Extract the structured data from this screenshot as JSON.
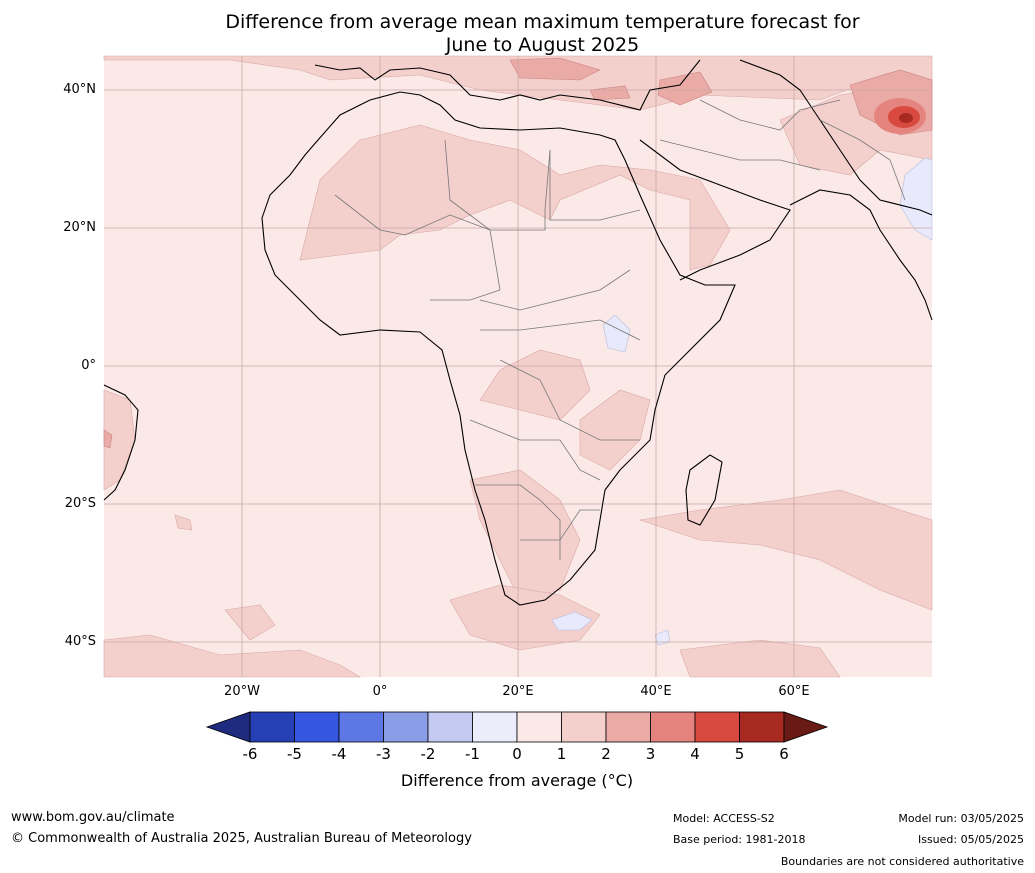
{
  "title_line1": "Difference from average mean maximum temperature forecast for",
  "title_line2": "June to August 2025",
  "lat_labels": [
    "40°N",
    "20°N",
    "0°",
    "20°S",
    "40°S"
  ],
  "lon_labels": [
    "20°W",
    "0°",
    "20°E",
    "40°E",
    "60°E"
  ],
  "colorbar": {
    "ticks": [
      "-6",
      "-5",
      "-4",
      "-3",
      "-2",
      "-1",
      "0",
      "1",
      "2",
      "3",
      "4",
      "5",
      "6"
    ],
    "colors": [
      "#1f2b7e",
      "#263fb4",
      "#3456e0",
      "#5d77e4",
      "#8a9ee8",
      "#c3c9f1",
      "#ebedfb",
      "#fbe9e7",
      "#f4d0cd",
      "#eaaaa6",
      "#e5837e",
      "#d84a3f",
      "#a8291f",
      "#6a1a14"
    ],
    "title": "Difference from average (°C)"
  },
  "map": {
    "background": "#fbe9e7",
    "tint_1_2": "#f4d0cd",
    "tint_2_3": "#eaaaa6",
    "tint_3_4": "#e5837e",
    "tint_4_5": "#d84a3f",
    "tint_neg": "#e8eafb"
  },
  "footer": {
    "website": "www.bom.gov.au/climate",
    "copyright": "© Commonwealth of Australia 2025, Australian Bureau of Meteorology",
    "model": "Model: ACCESS-S2",
    "base_period": "Base period: 1981-2018",
    "model_run": "Model run: 03/05/2025",
    "issued": "Issued: 05/05/2025",
    "disclaimer": "Boundaries are not considered authoritative"
  }
}
